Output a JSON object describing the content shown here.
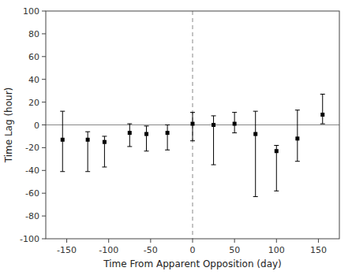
{
  "chart_data": {
    "type": "errorbar",
    "x": [
      -155,
      -125,
      -105,
      -75,
      -55,
      -30,
      0,
      25,
      50,
      75,
      100,
      125,
      155
    ],
    "values": [
      -13,
      -13,
      -15,
      -7,
      -8,
      -7,
      1,
      0,
      1,
      -8,
      -23,
      -12,
      9
    ],
    "errors_lower": [
      28,
      28,
      22,
      12,
      15,
      15,
      15,
      35,
      8,
      55,
      35,
      20,
      8
    ],
    "errors_upper": [
      25,
      7,
      5,
      8,
      7,
      7,
      10,
      8,
      10,
      20,
      5,
      25,
      18
    ],
    "xlabel": "Time From Apparent Opposition (day)",
    "ylabel": "Time Lag (hour)",
    "xlim": [
      -175,
      175
    ],
    "ylim": [
      -100,
      100
    ],
    "xticks": [
      -150,
      -100,
      -50,
      0,
      50,
      100,
      150
    ],
    "yticks": [
      -100,
      -80,
      -60,
      -40,
      -20,
      0,
      20,
      40,
      60,
      80,
      100
    ],
    "marker": "square",
    "color": "black",
    "grid": false,
    "reference_lines": [
      {
        "axis": "y",
        "value": 0,
        "color": "#888888",
        "line_style": "solid"
      },
      {
        "axis": "x",
        "value": 0,
        "color": "#888888",
        "line_style": "dashed"
      }
    ]
  }
}
